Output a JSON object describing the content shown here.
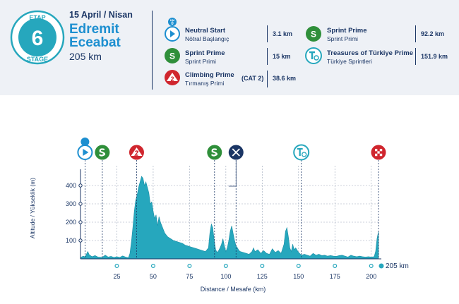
{
  "stage": {
    "etap_label": "ETAP",
    "number": "6",
    "stage_label": "STAGE",
    "date": "15 April / Nisan",
    "start_city": "Edremit",
    "finish_city": "Eceabat",
    "distance": "205 km"
  },
  "legend": {
    "neutral_start": {
      "badge": "KM",
      "badge_num": "0",
      "title": "Neutral Start",
      "subtitle": "Nötral Başlangıç",
      "km": "3.1 km"
    },
    "sprint1": {
      "glyph": "S",
      "title": "Sprint Prime",
      "subtitle": "Sprint Primi",
      "km": "15 km"
    },
    "climb": {
      "glyph": "2",
      "title": "Climbing Prime",
      "subtitle": "Tırmanış Primi",
      "category": "(CAT 2)",
      "km": "38.6 km"
    },
    "sprint2": {
      "glyph": "S",
      "title": "Sprint Prime",
      "subtitle": "Sprint Primi",
      "km": "92.2 km"
    },
    "treasures": {
      "title": "Treasures of Türkiye Prime",
      "subtitle": "Türkiye Sprintleri",
      "km": "151.9 km"
    }
  },
  "colors": {
    "navy": "#1b3665",
    "blue": "#1d8fd0",
    "teal": "#26a7bd",
    "sprint_green": "#2f8f3a",
    "climb_red": "#d0262e",
    "header_bg": "#eef1f6"
  },
  "chart_data": {
    "type": "area",
    "xlabel": "Distance / Mesafe  (km)",
    "ylabel": "Altitude / Yükseklik (m)",
    "xlim": [
      0,
      205
    ],
    "ylim": [
      0,
      450
    ],
    "x_ticks": [
      25,
      50,
      75,
      100,
      125,
      150,
      175,
      200
    ],
    "y_ticks": [
      100,
      200,
      300,
      400
    ],
    "end_label": "205 km",
    "grid": "vertical-dashed",
    "profile": [
      [
        0,
        8
      ],
      [
        2,
        15
      ],
      [
        3.1,
        10
      ],
      [
        5,
        40
      ],
      [
        6,
        22
      ],
      [
        8,
        12
      ],
      [
        10,
        18
      ],
      [
        12,
        10
      ],
      [
        15,
        8
      ],
      [
        17,
        20
      ],
      [
        19,
        10
      ],
      [
        21,
        14
      ],
      [
        23,
        8
      ],
      [
        25,
        12
      ],
      [
        27,
        8
      ],
      [
        29,
        16
      ],
      [
        31,
        10
      ],
      [
        33,
        6
      ],
      [
        34,
        30
      ],
      [
        35,
        90
      ],
      [
        36,
        170
      ],
      [
        37,
        260
      ],
      [
        38,
        320
      ],
      [
        39,
        350
      ],
      [
        40,
        390
      ],
      [
        41,
        420
      ],
      [
        42,
        450
      ],
      [
        43,
        440
      ],
      [
        44,
        400
      ],
      [
        45,
        420
      ],
      [
        46,
        390
      ],
      [
        47,
        360
      ],
      [
        48,
        300
      ],
      [
        49,
        310
      ],
      [
        50,
        260
      ],
      [
        51,
        220
      ],
      [
        52,
        240
      ],
      [
        53,
        180
      ],
      [
        54,
        230
      ],
      [
        55,
        200
      ],
      [
        56,
        180
      ],
      [
        57,
        160
      ],
      [
        58,
        140
      ],
      [
        60,
        120
      ],
      [
        62,
        110
      ],
      [
        64,
        100
      ],
      [
        66,
        95
      ],
      [
        68,
        90
      ],
      [
        70,
        85
      ],
      [
        72,
        75
      ],
      [
        74,
        70
      ],
      [
        76,
        65
      ],
      [
        78,
        60
      ],
      [
        80,
        55
      ],
      [
        82,
        50
      ],
      [
        84,
        45
      ],
      [
        86,
        40
      ],
      [
        88,
        60
      ],
      [
        89,
        140
      ],
      [
        90,
        190
      ],
      [
        91,
        170
      ],
      [
        92,
        100
      ],
      [
        93,
        50
      ],
      [
        94,
        35
      ],
      [
        95,
        45
      ],
      [
        96,
        60
      ],
      [
        97,
        80
      ],
      [
        98,
        110
      ],
      [
        99,
        70
      ],
      [
        100,
        40
      ],
      [
        101,
        60
      ],
      [
        102,
        100
      ],
      [
        103,
        150
      ],
      [
        104,
        180
      ],
      [
        105,
        140
      ],
      [
        106,
        100
      ],
      [
        107,
        70
      ],
      [
        108,
        60
      ],
      [
        109,
        45
      ],
      [
        110,
        40
      ],
      [
        112,
        35
      ],
      [
        114,
        30
      ],
      [
        116,
        25
      ],
      [
        118,
        40
      ],
      [
        119,
        60
      ],
      [
        120,
        40
      ],
      [
        122,
        50
      ],
      [
        124,
        30
      ],
      [
        126,
        45
      ],
      [
        128,
        30
      ],
      [
        130,
        25
      ],
      [
        132,
        55
      ],
      [
        134,
        35
      ],
      [
        136,
        45
      ],
      [
        138,
        30
      ],
      [
        140,
        80
      ],
      [
        141,
        150
      ],
      [
        142,
        170
      ],
      [
        143,
        120
      ],
      [
        144,
        60
      ],
      [
        145,
        40
      ],
      [
        146,
        80
      ],
      [
        147,
        50
      ],
      [
        148,
        60
      ],
      [
        150,
        35
      ],
      [
        152,
        20
      ],
      [
        154,
        25
      ],
      [
        156,
        20
      ],
      [
        158,
        15
      ],
      [
        160,
        30
      ],
      [
        162,
        20
      ],
      [
        164,
        25
      ],
      [
        166,
        18
      ],
      [
        168,
        20
      ],
      [
        170,
        15
      ],
      [
        172,
        18
      ],
      [
        174,
        15
      ],
      [
        176,
        14
      ],
      [
        178,
        18
      ],
      [
        180,
        20
      ],
      [
        182,
        15
      ],
      [
        184,
        10
      ],
      [
        186,
        20
      ],
      [
        188,
        15
      ],
      [
        190,
        12
      ],
      [
        192,
        15
      ],
      [
        194,
        12
      ],
      [
        196,
        10
      ],
      [
        198,
        12
      ],
      [
        200,
        10
      ],
      [
        202,
        12
      ],
      [
        203,
        40
      ],
      [
        204,
        110
      ],
      [
        205,
        150
      ]
    ],
    "markers": [
      {
        "km": 3.1,
        "type": "neutral-start"
      },
      {
        "km": 15,
        "type": "sprint"
      },
      {
        "km": 38.6,
        "type": "climb-cat2"
      },
      {
        "km": 92.2,
        "type": "sprint"
      },
      {
        "km": 107,
        "type": "feed-zone"
      },
      {
        "km": 151.9,
        "type": "treasures-sprint"
      },
      {
        "km": 205,
        "type": "finish"
      }
    ]
  }
}
